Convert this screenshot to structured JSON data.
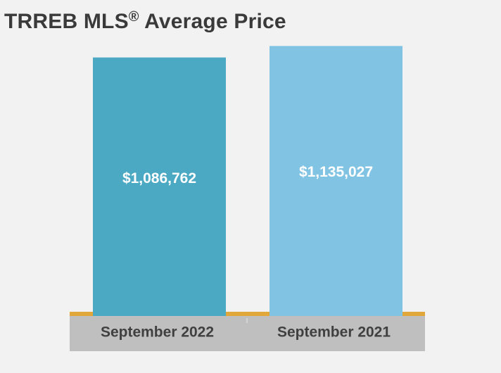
{
  "title": {
    "main": "TRREB MLS",
    "registered_mark": "®",
    "rest": " Average Price"
  },
  "chart_data": {
    "type": "bar",
    "title": "TRREB MLS® Average Price",
    "categories": [
      "September 2022",
      "September 2021"
    ],
    "values": [
      1086762,
      1135027
    ],
    "value_labels": [
      "$1,086,762",
      "$1,135,027"
    ],
    "xlabel": "",
    "ylabel": "",
    "ylim": [
      0,
      1210000
    ],
    "grid": false,
    "legend": "none",
    "bar_colors": [
      "#4ba9c3",
      "#81c3e3"
    ]
  },
  "colors": {
    "background": "#f2f2f2",
    "axis_line": "#e2a73a",
    "category_band": "#bfbfbf",
    "category_text": "#404040",
    "value_text": "#ffffff",
    "title_text": "#3a3a3a"
  }
}
